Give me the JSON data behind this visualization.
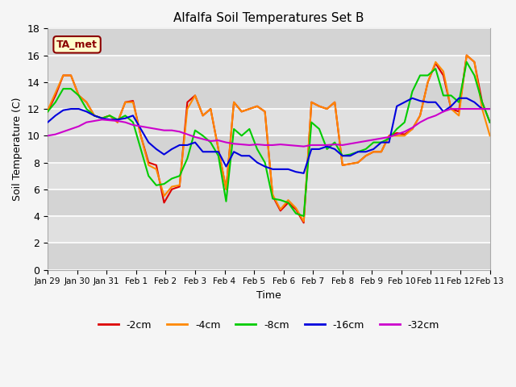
{
  "title": "Alfalfa Soil Temperatures Set B",
  "xlabel": "Time",
  "ylabel": "Soil Temperature (C)",
  "ylim": [
    0,
    18
  ],
  "annotation": "TA_met",
  "x_labels": [
    "Jan 29",
    "Jan 30",
    "Jan 31",
    "Feb 1",
    "Feb 2",
    "Feb 3",
    "Feb 4",
    "Feb 5",
    "Feb 6",
    "Feb 7",
    "Feb 8",
    "Feb 9",
    "Feb 10",
    "Feb 11",
    "Feb 12",
    "Feb 13"
  ],
  "colors": {
    "-2cm": "#dd0000",
    "-4cm": "#ff8800",
    "-8cm": "#00cc00",
    "-16cm": "#0000dd",
    "-32cm": "#cc00cc"
  },
  "data": {
    "-2cm": [
      11.8,
      13.0,
      14.5,
      14.5,
      13.0,
      12.5,
      11.5,
      11.3,
      11.5,
      11.0,
      12.5,
      12.6,
      10.0,
      8.0,
      7.8,
      5.0,
      6.0,
      6.2,
      12.5,
      13.0,
      11.5,
      12.0,
      9.0,
      6.0,
      12.5,
      11.8,
      12.0,
      12.2,
      11.8,
      5.5,
      4.4,
      5.0,
      4.5,
      3.5,
      12.5,
      12.2,
      12.0,
      12.5,
      7.8,
      7.9,
      8.0,
      8.5,
      8.8,
      8.8,
      10.0,
      10.2,
      10.1,
      10.5,
      11.5,
      14.0,
      15.4,
      14.5,
      12.0,
      11.8,
      16.0,
      15.5,
      12.5,
      11.0
    ],
    "-4cm": [
      11.9,
      13.2,
      14.5,
      14.5,
      13.0,
      12.5,
      11.5,
      11.3,
      11.5,
      11.0,
      12.5,
      12.5,
      10.0,
      7.8,
      7.5,
      5.5,
      6.2,
      6.3,
      12.0,
      13.0,
      11.5,
      12.0,
      9.0,
      6.0,
      12.5,
      11.8,
      12.0,
      12.2,
      11.8,
      5.6,
      4.5,
      5.2,
      4.6,
      3.6,
      12.5,
      12.2,
      12.0,
      12.5,
      7.8,
      7.9,
      8.0,
      8.5,
      8.8,
      8.8,
      10.0,
      10.0,
      10.0,
      10.5,
      11.5,
      14.0,
      15.5,
      14.8,
      12.0,
      11.5,
      16.0,
      15.5,
      12.0,
      10.0
    ],
    "-8cm": [
      11.8,
      12.5,
      13.5,
      13.5,
      13.0,
      12.0,
      11.5,
      11.3,
      11.5,
      11.2,
      11.5,
      11.0,
      9.0,
      7.0,
      6.3,
      6.4,
      6.8,
      7.0,
      8.3,
      10.4,
      10.0,
      9.5,
      8.5,
      5.1,
      10.5,
      10.0,
      10.5,
      9.0,
      8.0,
      5.3,
      5.2,
      5.0,
      4.2,
      4.0,
      11.0,
      10.5,
      9.0,
      9.5,
      8.5,
      8.6,
      8.8,
      9.0,
      9.5,
      9.5,
      9.8,
      10.5,
      11.0,
      13.3,
      14.5,
      14.5,
      15.0,
      13.0,
      13.0,
      12.5,
      15.5,
      14.5,
      12.5,
      11.0
    ],
    "-16cm": [
      11.0,
      11.5,
      11.9,
      12.0,
      12.0,
      11.8,
      11.5,
      11.3,
      11.2,
      11.2,
      11.3,
      11.5,
      10.5,
      9.5,
      9.0,
      8.6,
      9.0,
      9.3,
      9.3,
      9.5,
      8.8,
      8.8,
      8.8,
      7.7,
      8.8,
      8.5,
      8.5,
      8.0,
      7.7,
      7.5,
      7.5,
      7.5,
      7.3,
      7.2,
      9.0,
      9.0,
      9.2,
      9.0,
      8.5,
      8.5,
      8.8,
      8.8,
      9.0,
      9.5,
      9.5,
      12.2,
      12.5,
      12.8,
      12.6,
      12.5,
      12.5,
      11.8,
      12.2,
      12.8,
      12.8,
      12.5,
      12.0,
      12.0
    ],
    "-32cm": [
      10.0,
      10.1,
      10.3,
      10.5,
      10.7,
      11.0,
      11.1,
      11.2,
      11.15,
      11.1,
      11.0,
      10.8,
      10.7,
      10.6,
      10.5,
      10.4,
      10.4,
      10.3,
      10.1,
      9.9,
      9.75,
      9.6,
      9.65,
      9.5,
      9.4,
      9.35,
      9.3,
      9.35,
      9.3,
      9.3,
      9.35,
      9.3,
      9.25,
      9.2,
      9.3,
      9.3,
      9.3,
      9.35,
      9.3,
      9.4,
      9.5,
      9.6,
      9.7,
      9.8,
      9.9,
      10.1,
      10.3,
      10.6,
      11.0,
      11.3,
      11.5,
      11.8,
      12.0,
      12.0,
      12.0,
      12.0,
      12.0,
      12.0
    ]
  },
  "n_xticks": 16,
  "band_colors": [
    "#d4d4d4",
    "#e0e0e0"
  ],
  "fig_bg": "#f5f5f5"
}
